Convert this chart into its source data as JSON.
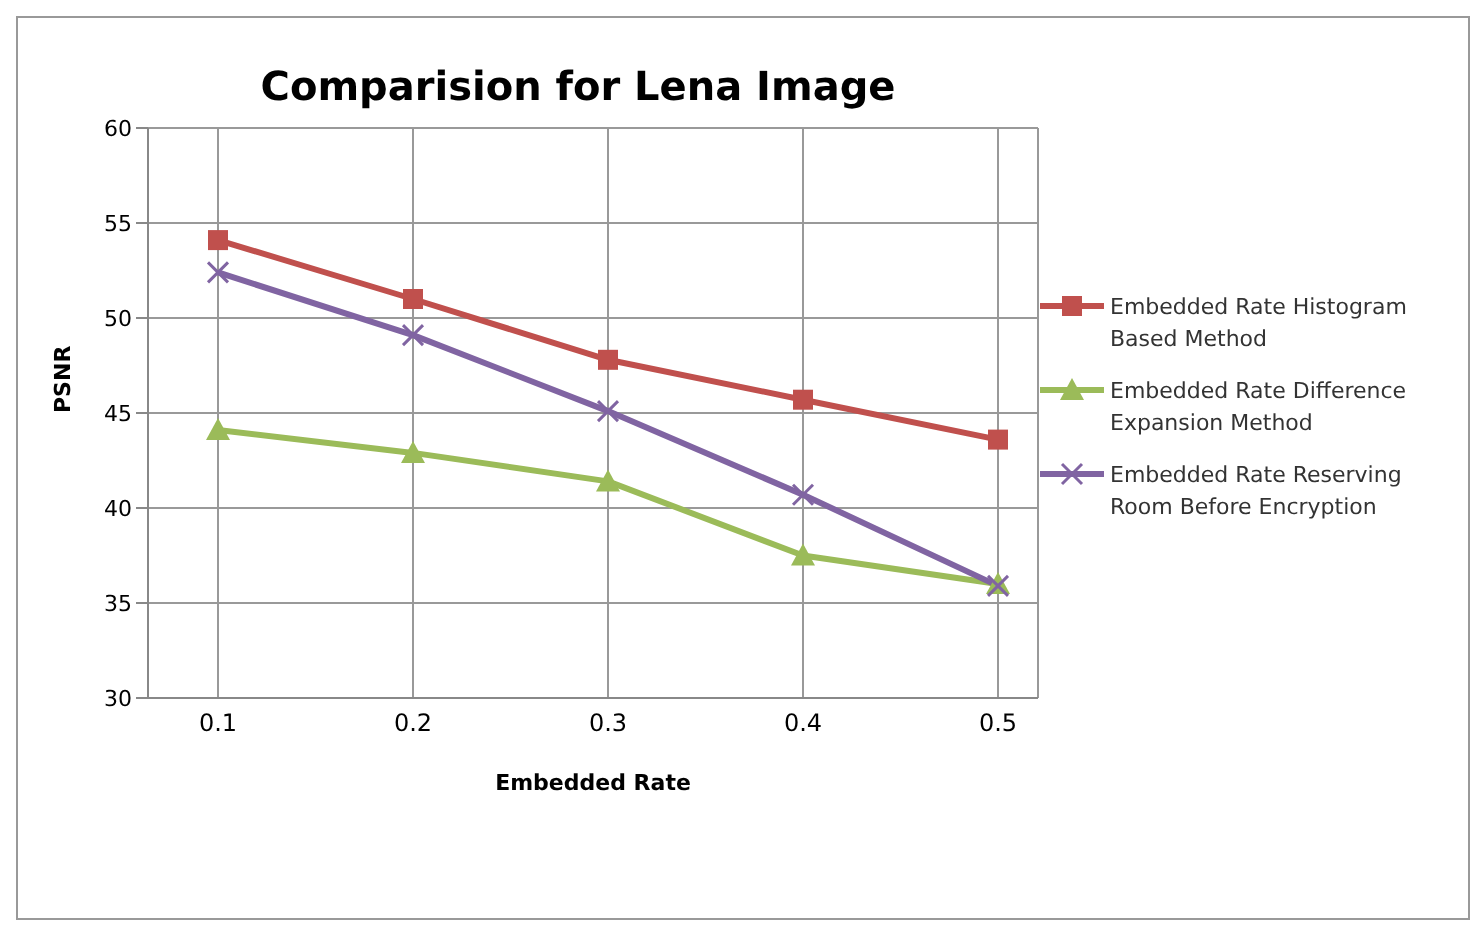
{
  "chart_data": {
    "type": "line",
    "title": "Comparision for Lena Image",
    "xlabel": "Embedded Rate",
    "ylabel": "PSNR",
    "categories": [
      "0.1",
      "0.2",
      "0.3",
      "0.4",
      "0.5"
    ],
    "series": [
      {
        "name": "Embedded Rate Histogram Based Method",
        "color": "#c0504d",
        "marker": "square",
        "values": [
          54.1,
          51.0,
          47.8,
          45.7,
          43.6
        ]
      },
      {
        "name": "Embedded Rate Difference Expansion Method",
        "color": "#9bbb59",
        "marker": "triangle",
        "values": [
          44.1,
          42.9,
          41.4,
          37.5,
          36.0
        ]
      },
      {
        "name": "Embedded Rate Reserving Room Before Encryption",
        "color": "#8064a2",
        "marker": "cross",
        "values": [
          52.4,
          49.1,
          45.1,
          40.7,
          35.9
        ]
      }
    ],
    "ylim": [
      30,
      60
    ],
    "yticks": [
      30,
      35,
      40,
      45,
      50,
      55,
      60
    ],
    "grid": true,
    "legend": "right"
  }
}
